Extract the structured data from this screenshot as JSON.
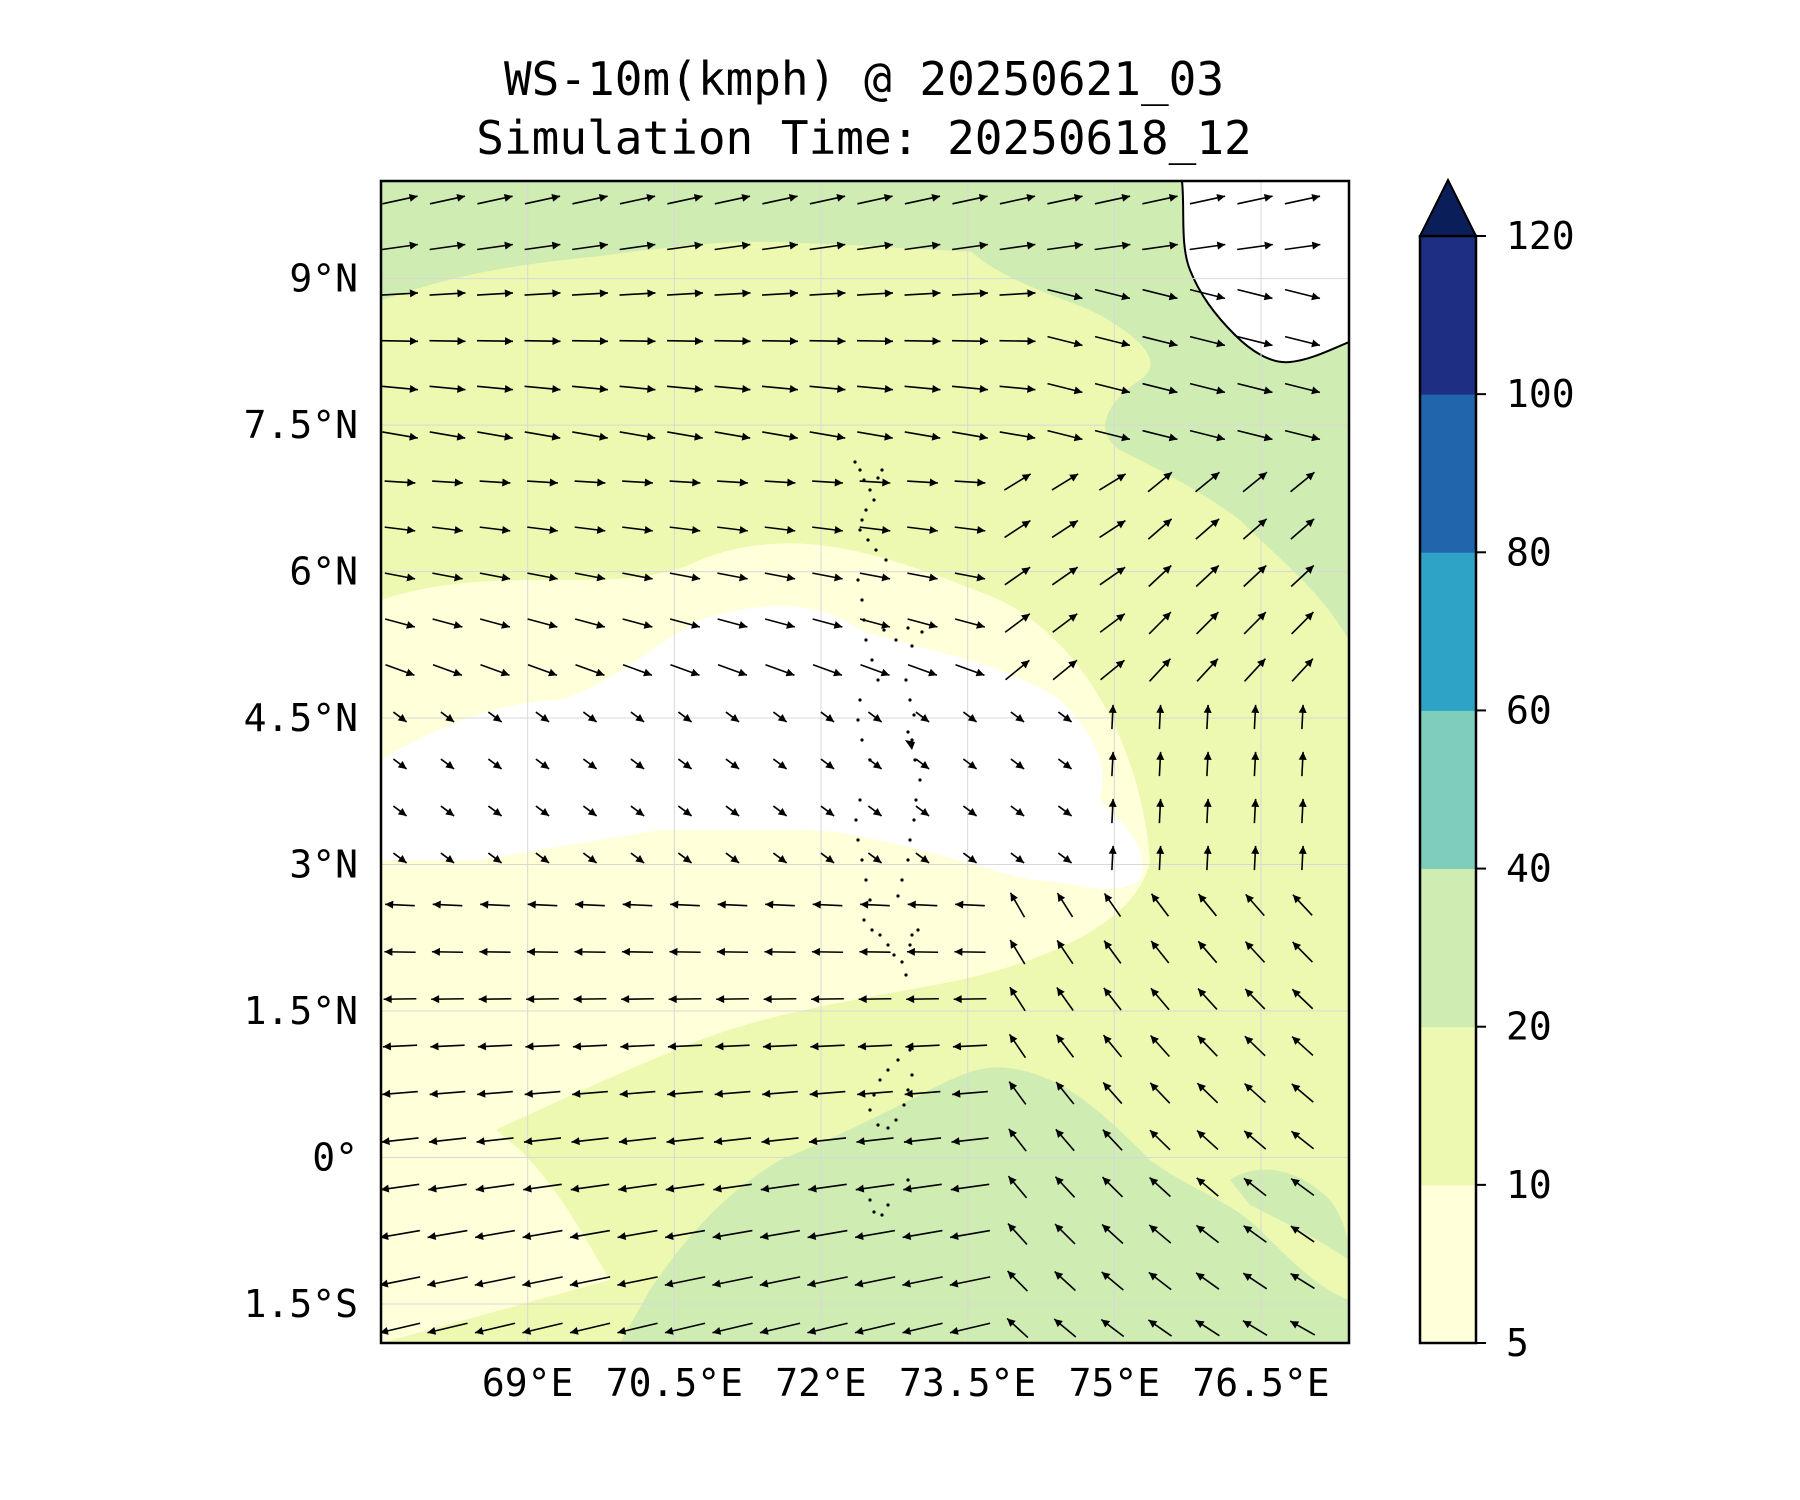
{
  "title": "WS-10m(kmph) @ 20250621_03",
  "subtitle": "Simulation Time: 20250618_12",
  "map": {
    "lon_range": [
      67.5,
      77.4
    ],
    "lat_range": [
      -1.9,
      10.0
    ],
    "x_ticks": [
      {
        "value": 69,
        "label": "69°E"
      },
      {
        "value": 70.5,
        "label": "70.5°E"
      },
      {
        "value": 72,
        "label": "72°E"
      },
      {
        "value": 73.5,
        "label": "73.5°E"
      },
      {
        "value": 75,
        "label": "75°E"
      },
      {
        "value": 76.5,
        "label": "76.5°E"
      }
    ],
    "y_ticks": [
      {
        "value": 9,
        "label": "9°N"
      },
      {
        "value": 7.5,
        "label": "7.5°N"
      },
      {
        "value": 6,
        "label": "6°N"
      },
      {
        "value": 4.5,
        "label": "4.5°N"
      },
      {
        "value": 3,
        "label": "3°N"
      },
      {
        "value": 1.5,
        "label": "1.5°N"
      },
      {
        "value": 0,
        "label": "0°"
      },
      {
        "value": -1.5,
        "label": "1.5°S"
      }
    ],
    "grid": true,
    "colors": {
      "lt5": "#ffffff",
      "c5_10": "#ffffd9",
      "c10_20": "#edf8b1",
      "c20_40": "#cfecb3",
      "c40_60": "#7fcdbb",
      "c60_80": "#2fa3c6",
      "c80_100": "#2166ac",
      "c100_120": "#1d2e83",
      "gt120": "#0a1f5a"
    }
  },
  "colorbar": {
    "levels": [
      5,
      10,
      20,
      40,
      60,
      80,
      100,
      120
    ],
    "labels": [
      "5",
      "10",
      "20",
      "40",
      "60",
      "80",
      "100",
      "120"
    ],
    "colors": [
      "#ffffd9",
      "#edf8b1",
      "#cfecb3",
      "#7fcdbb",
      "#2fa3c6",
      "#2166ac",
      "#1d2e83"
    ],
    "extend_color": "#0a1f5a",
    "extend": "max"
  }
}
